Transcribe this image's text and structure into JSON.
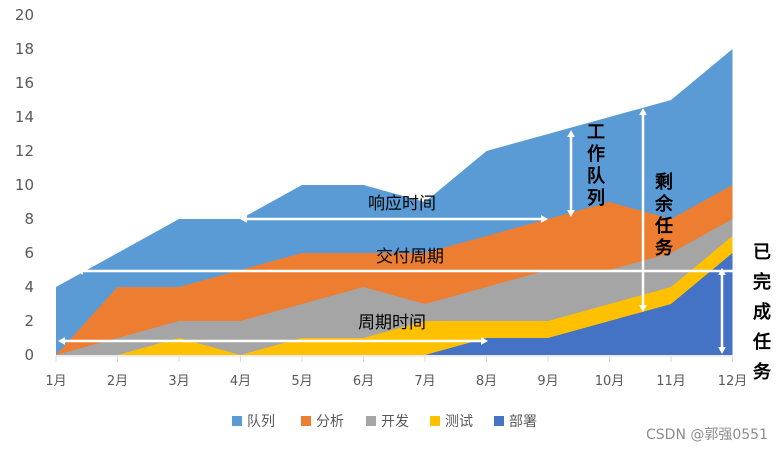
{
  "chart_data": {
    "type": "area",
    "stacked": true,
    "categories": [
      "1月",
      "2月",
      "3月",
      "4月",
      "5月",
      "6月",
      "7月",
      "8月",
      "9月",
      "10月",
      "11月",
      "12月"
    ],
    "ylim": [
      0,
      20
    ],
    "yticks": [
      0,
      2,
      4,
      6,
      8,
      10,
      12,
      14,
      16,
      18,
      20
    ],
    "grid": false,
    "legend_position": "bottom",
    "series": [
      {
        "name": "队列",
        "color": "#5b9bd5",
        "values": [
          4,
          2,
          4,
          3,
          4,
          4,
          3,
          5,
          5,
          5,
          7,
          8
        ]
      },
      {
        "name": "分析",
        "color": "#ed7d31",
        "values": [
          0,
          3,
          2,
          3,
          3,
          2,
          3,
          3,
          3,
          4,
          2,
          2
        ]
      },
      {
        "name": "开发",
        "color": "#a5a5a5",
        "values": [
          0,
          1,
          1,
          2,
          2,
          3,
          1,
          2,
          3,
          2,
          2,
          1
        ]
      },
      {
        "name": "测试",
        "color": "#ffc000",
        "values": [
          0,
          0,
          1,
          0,
          1,
          1,
          2,
          1,
          1,
          1,
          1,
          1
        ]
      },
      {
        "name": "部署",
        "color": "#4472c4",
        "values": [
          0,
          0,
          0,
          0,
          0,
          0,
          0,
          1,
          1,
          2,
          3,
          6
        ]
      }
    ],
    "annotations": {
      "response_time": "响应时间",
      "delivery_cycle": "交付周期",
      "cycle_time": "周期时间",
      "queue": "工作队列",
      "remaining": "剩余任务",
      "completed": "已完成任务"
    }
  },
  "watermark": "CSDN @郭强0551"
}
